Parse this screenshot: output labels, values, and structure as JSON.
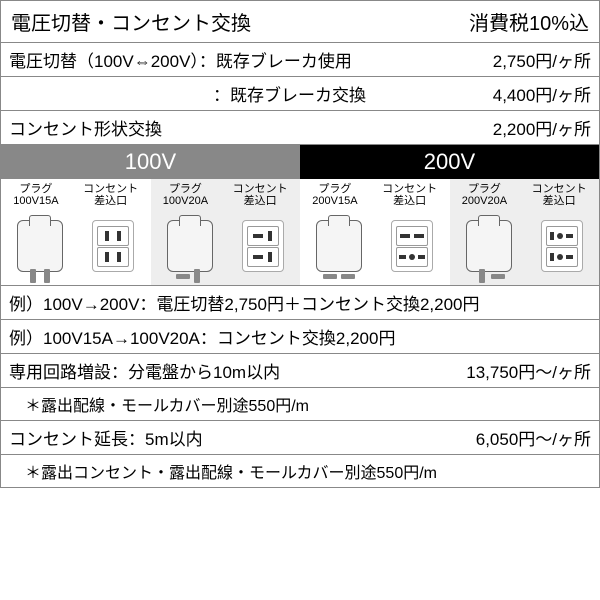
{
  "header": {
    "title": "電圧切替・コンセント交換",
    "tax": "消費税10%込"
  },
  "rows": [
    {
      "left": "電圧切替（100V⇔200V）：既存ブレーカ使用",
      "right": "2,750円/ヶ所"
    },
    {
      "left": "　　　　　　　　　　　　：既存ブレーカ交換",
      "right": "4,400円/ヶ所"
    },
    {
      "left": "コンセント形状交換",
      "right": "2,200円/ヶ所"
    }
  ],
  "vheaders": {
    "v100": "100V",
    "v200": "200V"
  },
  "plugs": [
    {
      "plug": "プラグ\n100V15A",
      "outlet": "コンセント\n差込口",
      "alt": false,
      "type": "p15a"
    },
    {
      "plug": "プラグ\n100V20A",
      "outlet": "コンセント\n差込口",
      "alt": true,
      "type": "p20a"
    },
    {
      "plug": "プラグ\n200V15A",
      "outlet": "コンセント\n差込口",
      "alt": false,
      "type": "p200_15"
    },
    {
      "plug": "プラグ\n200V20A",
      "outlet": "コンセント\n差込口",
      "alt": true,
      "type": "p200_20"
    }
  ],
  "examples": [
    "例）100V→200V：電圧切替2,750円＋コンセント交換2,200円",
    "例）100V15A→100V20A：コンセント交換2,200円"
  ],
  "circuit": {
    "left": "専用回路増設：分電盤から10m以内",
    "right": "13,750円〜/ヶ所"
  },
  "circuit_note": "＊露出配線・モールカバー別途550円/m",
  "extend": {
    "left": "コンセント延長：5m以内",
    "right": "6,050円〜/ヶ所"
  },
  "extend_note": "＊露出コンセント・露出配線・モールカバー別途550円/m"
}
